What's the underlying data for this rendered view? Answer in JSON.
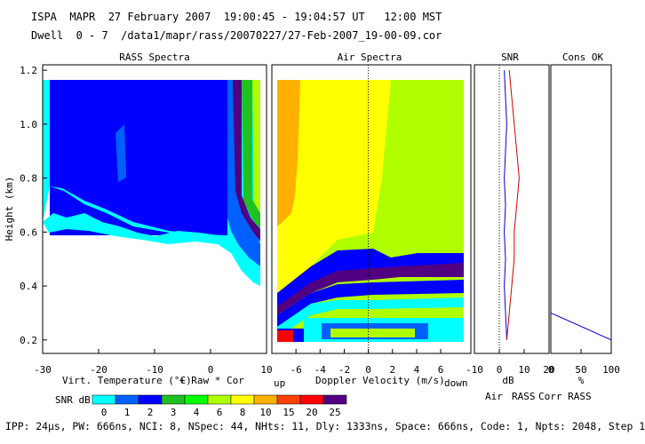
{
  "header": {
    "line1": "ISPA  MAPR  27 February 2007  19:00:45 - 19:04:57 UT   12:00 MST",
    "line2": "Dwell  0 - 7  /data1/mapr/rass/20070227/27-Feb-2007_19-00-09.cor"
  },
  "footer": "IPP: 24µs, PW: 666ns, NCI: 8, NSpec: 44, NHts: 11, Dly: 1333ns, Space: 666ns, Code: 1, Npts: 2048, Step 1",
  "colorbar": {
    "label": "SNR dB",
    "ticks": [
      "0",
      "1",
      "2",
      "3",
      "4",
      "6",
      "8",
      "10",
      "15",
      "20",
      "25"
    ],
    "colors": [
      "#00ffff",
      "#0060ff",
      "#0000ff",
      "#20c020",
      "#00ff00",
      "#b0ff00",
      "#ffff00",
      "#ffb000",
      "#ff4000",
      "#ff0000",
      "#500080"
    ]
  },
  "chart_data": [
    {
      "type": "heatmap",
      "title": "RASS Spectra",
      "xlabel": "Virt. Temperature (°C)",
      "xlabel_extra": "+ Raw   * Cor",
      "ylabel": "Height (km)",
      "xlim": [
        -30,
        10
      ],
      "ylim": [
        0.15,
        1.22
      ],
      "xticks": [
        "-30",
        "-20",
        "-10",
        "0",
        "10"
      ],
      "yticks": [
        "0.2",
        "0.4",
        "0.6",
        "0.8",
        "1.0",
        "1.2"
      ],
      "ytick_values": [
        0.2,
        0.4,
        0.6,
        0.8,
        1.0,
        1.2
      ],
      "description_values": {
        "signal_region_top_km": 1.2,
        "signal_boundary_km": [
          0.62,
          0.75
        ],
        "strong_band_temp_c": [
          3,
          8
        ]
      }
    },
    {
      "type": "heatmap",
      "title": "Air Spectra",
      "xlabel": "Doppler Velocity (m/s)",
      "xlabel_left": "up",
      "xlabel_right": "down",
      "xlim": [
        -8,
        8.5
      ],
      "xticks": [
        "-6",
        "-4",
        "-2",
        "0",
        "2",
        "4",
        "6"
      ],
      "zero_line": 0
    },
    {
      "type": "line",
      "title": "SNR",
      "xlabel": "dB",
      "xlim": [
        -10,
        20
      ],
      "xticks": [
        "-10",
        "0",
        "10",
        "20"
      ],
      "legend": [
        "Air",
        "RASS",
        "Corr RASS"
      ],
      "series": [
        {
          "name": "Air",
          "color": "#0000d0",
          "points": [
            [
              3,
              0.2
            ],
            [
              2.5,
              0.3
            ],
            [
              2,
              0.4
            ],
            [
              2.5,
              0.5
            ],
            [
              2,
              0.6
            ],
            [
              2.5,
              0.7
            ],
            [
              2,
              0.8
            ],
            [
              2.5,
              0.9
            ],
            [
              3,
              1.0
            ],
            [
              2.5,
              1.1
            ],
            [
              2,
              1.2
            ]
          ]
        },
        {
          "name": "RASS",
          "color": "#d00000",
          "points": [
            [
              3,
              0.2
            ],
            [
              4,
              0.3
            ],
            [
              5,
              0.4
            ],
            [
              6,
              0.5
            ],
            [
              6,
              0.6
            ],
            [
              7,
              0.7
            ],
            [
              8,
              0.8
            ],
            [
              7,
              0.9
            ],
            [
              6,
              1.0
            ],
            [
              5,
              1.1
            ],
            [
              4,
              1.2
            ]
          ]
        }
      ]
    },
    {
      "type": "line",
      "title": "Cons OK",
      "xlabel": "%",
      "xlim": [
        0,
        100
      ],
      "xticks": [
        "0",
        "50",
        "100"
      ],
      "series": [
        {
          "name": "Cons OK",
          "color": "#0000d0",
          "points": [
            [
              0,
              0.3
            ],
            [
              100,
              0.2
            ]
          ]
        }
      ]
    }
  ]
}
